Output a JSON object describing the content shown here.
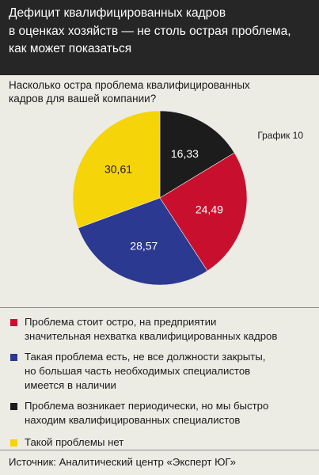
{
  "header": {
    "title_lines": [
      "Дефицит квалифицированных кадров",
      "в оценках хозяйств — не столь острая проблема,",
      "как может показаться"
    ]
  },
  "question": {
    "lines": [
      "Насколько остра проблема квалифицированных",
      "кадров для вашей компании?"
    ]
  },
  "graph_label": "График 10",
  "chart_data": {
    "type": "pie",
    "title": "Насколько остра проблема квалифицированных кадров для вашей компании?",
    "start_angle_deg": 0,
    "direction": "clockwise",
    "slices": [
      {
        "label": "16,33",
        "value": 16.33,
        "color": "#1c1c1c",
        "text_color": "#ffffff"
      },
      {
        "label": "24,49",
        "value": 24.49,
        "color": "#c8102e",
        "text_color": "#ffffff"
      },
      {
        "label": "28,57",
        "value": 28.57,
        "color": "#2b3990",
        "text_color": "#ffffff"
      },
      {
        "label": "30,61",
        "value": 30.61,
        "color": "#f5d40a",
        "text_color": "#1a1a1a"
      }
    ]
  },
  "legend": {
    "items": [
      {
        "color": "#c8102e",
        "lines": [
          "Проблема стоит остро, на предприятии",
          "значительная нехватка квалифицированных кадров"
        ]
      },
      {
        "color": "#2b3990",
        "lines": [
          "Такая проблема есть, не все должности закрыты,",
          "но большая часть необходимых специалистов",
          "имеется в наличии"
        ]
      },
      {
        "color": "#1c1c1c",
        "lines": [
          "Проблема возникает периодически, но  мы быстро",
          "находим квалифицированных специалистов"
        ]
      },
      {
        "color": "#f5d40a",
        "lines": [
          "Такой  проблемы нет"
        ]
      }
    ]
  },
  "source": "Источник: Аналитический центр «Эксперт ЮГ»"
}
